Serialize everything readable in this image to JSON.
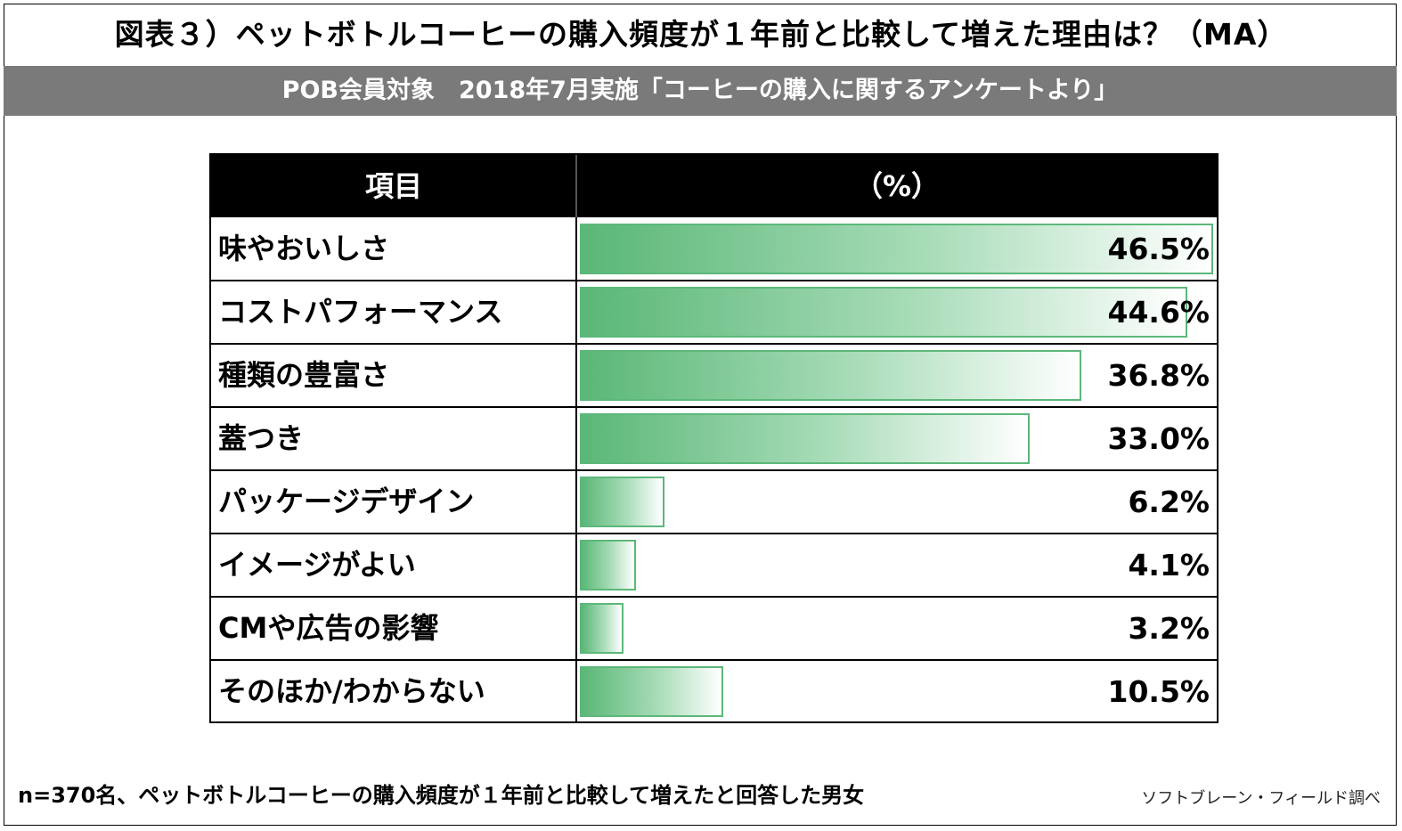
{
  "title": "図表３）ペットボトルコーヒーの購入頻度が１年前と比較して増えた理由は？（MA）",
  "subtitle": "POB会員対象　2018年7月実施「コーヒーの購入に関するアンケートより」",
  "table": {
    "header_item": "項目",
    "header_pct": "（%）"
  },
  "chart_data": {
    "type": "bar",
    "orientation": "horizontal",
    "title": "図表３）ペットボトルコーヒーの購入頻度が１年前と比較して増えた理由は？（MA）",
    "categories": [
      "味やおいしさ",
      "コストパフォーマンス",
      "種類の豊富さ",
      "蓋つき",
      "パッケージデザイン",
      "イメージがよい",
      "CMや広告の影響",
      "そのほか/わからない"
    ],
    "values": [
      46.5,
      44.6,
      36.8,
      33.0,
      6.2,
      4.1,
      3.2,
      10.5
    ],
    "value_labels": [
      "46.5%",
      "44.6%",
      "36.8%",
      "33.0%",
      "6.2%",
      "4.1%",
      "3.2%",
      "10.5%"
    ],
    "xlim": [
      0,
      46.5
    ],
    "bar_color": "#5ab777"
  },
  "footnote": "n=370名、ペットボトルコーヒーの購入頻度が１年前と比較して増えたと回答した男女",
  "source": "ソフトブレーン・フィールド調べ"
}
